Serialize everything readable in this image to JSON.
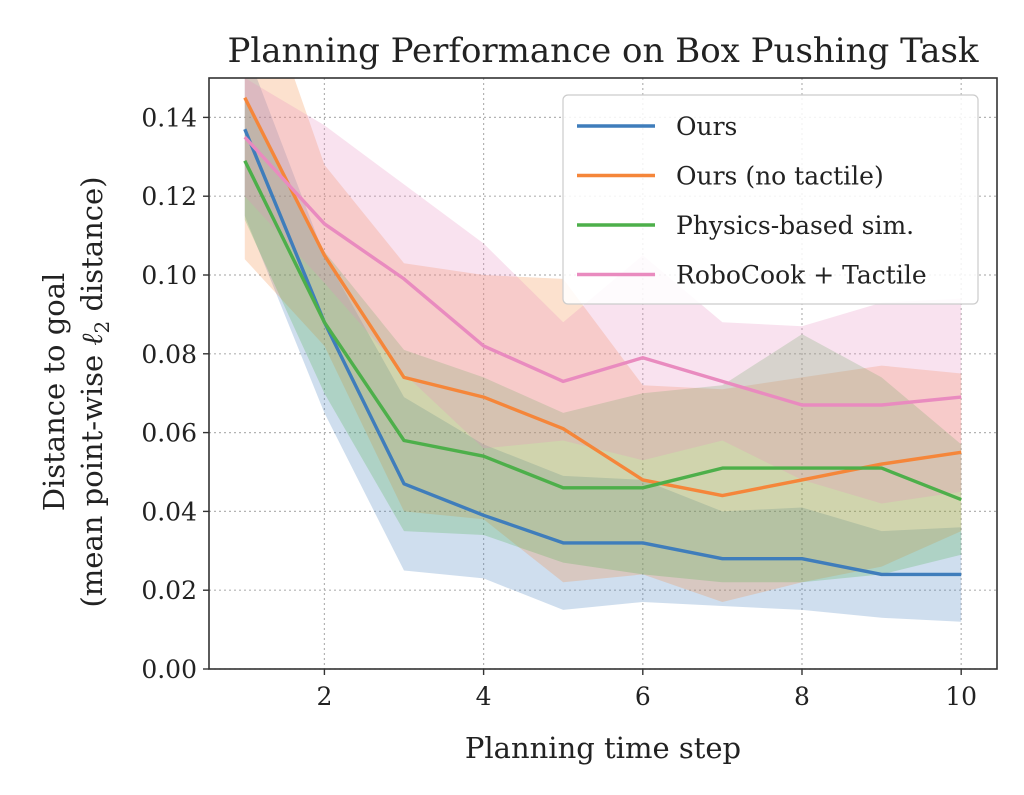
{
  "chart_data": {
    "type": "line",
    "title": "Planning Performance on Box Pushing Task",
    "xlabel": "Planning time step",
    "ylabel_line1": "Distance to goal",
    "ylabel_line2_prefix": "(mean point-wise ",
    "ylabel_line2_symbol": "ℓ",
    "ylabel_line2_subscript": "2",
    "ylabel_line2_suffix": " distance)",
    "x": [
      1,
      2,
      3,
      4,
      5,
      6,
      7,
      8,
      9,
      10
    ],
    "xlim": [
      0.55,
      10.45
    ],
    "ylim": [
      0,
      0.15
    ],
    "xticks": [
      2,
      4,
      6,
      8,
      10
    ],
    "xtick_labels": [
      "2",
      "4",
      "6",
      "8",
      "10"
    ],
    "yticks": [
      0,
      0.02,
      0.04,
      0.06,
      0.08,
      0.1,
      0.12,
      0.14
    ],
    "ytick_labels": [
      "0.00",
      "0.02",
      "0.04",
      "0.06",
      "0.08",
      "0.10",
      "0.12",
      "0.14"
    ],
    "grid": true,
    "legend_position": "top-right",
    "series": [
      {
        "name": "Ours",
        "color": "#3f7dbb",
        "values": [
          0.137,
          0.088,
          0.047,
          0.039,
          0.032,
          0.032,
          0.028,
          0.028,
          0.024,
          0.024
        ],
        "lower": [
          0.115,
          0.065,
          0.025,
          0.023,
          0.015,
          0.017,
          0.016,
          0.015,
          0.013,
          0.012
        ],
        "upper": [
          0.158,
          0.105,
          0.069,
          0.057,
          0.049,
          0.048,
          0.04,
          0.041,
          0.035,
          0.036
        ]
      },
      {
        "name": "Ours (no tactile)",
        "color": "#f5863a",
        "values": [
          0.145,
          0.105,
          0.074,
          0.069,
          0.061,
          0.048,
          0.044,
          0.048,
          0.052,
          0.055
        ],
        "lower": [
          0.104,
          0.082,
          0.04,
          0.038,
          0.022,
          0.024,
          0.017,
          0.022,
          0.026,
          0.035
        ],
        "upper": [
          0.186,
          0.128,
          0.103,
          0.1,
          0.099,
          0.072,
          0.071,
          0.074,
          0.077,
          0.075
        ]
      },
      {
        "name": "Physics-based sim.",
        "color": "#4daf4a",
        "values": [
          0.129,
          0.088,
          0.058,
          0.054,
          0.046,
          0.046,
          0.051,
          0.051,
          0.051,
          0.043
        ],
        "lower": [
          0.114,
          0.07,
          0.035,
          0.034,
          0.027,
          0.024,
          0.022,
          0.022,
          0.024,
          0.029
        ],
        "upper": [
          0.145,
          0.106,
          0.081,
          0.074,
          0.065,
          0.07,
          0.072,
          0.085,
          0.074,
          0.057
        ]
      },
      {
        "name": "RoboCook + Tactile",
        "color": "#e98bbf",
        "values": [
          0.135,
          0.113,
          0.099,
          0.082,
          0.073,
          0.079,
          0.073,
          0.067,
          0.067,
          0.069
        ],
        "lower": [
          0.12,
          0.098,
          0.075,
          0.056,
          0.058,
          0.053,
          0.058,
          0.048,
          0.042,
          0.045
        ],
        "upper": [
          0.15,
          0.138,
          0.123,
          0.108,
          0.088,
          0.105,
          0.088,
          0.087,
          0.093,
          0.094
        ]
      }
    ]
  }
}
